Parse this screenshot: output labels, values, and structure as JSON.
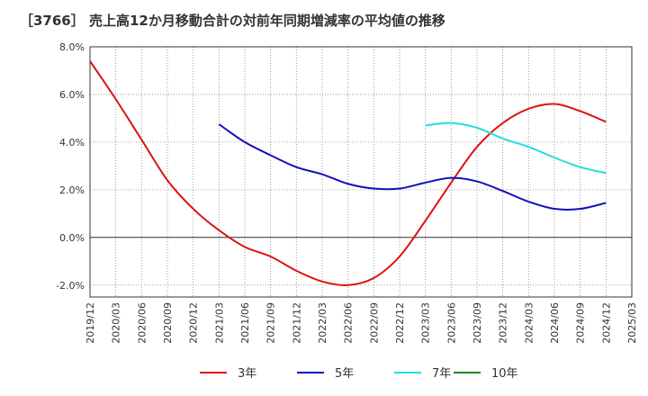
{
  "chart_data": {
    "type": "line",
    "title": "［3766］ 売上高12か月移動合計の対前年同期増減率の平均値の推移",
    "xlabel": "",
    "ylabel": "",
    "ylim": [
      -2.5,
      8.0
    ],
    "y_ticks": [
      "8.0%",
      "6.0%",
      "4.0%",
      "2.0%",
      "0.0%",
      "-2.0%"
    ],
    "y_tick_values": [
      8.0,
      6.0,
      4.0,
      2.0,
      0.0,
      -2.0
    ],
    "x_ticks": [
      "2019/12",
      "2020/03",
      "2020/06",
      "2020/09",
      "2020/12",
      "2021/03",
      "2021/06",
      "2021/09",
      "2021/12",
      "2022/03",
      "2022/06",
      "2022/09",
      "2022/12",
      "2023/03",
      "2023/06",
      "2023/09",
      "2023/12",
      "2024/03",
      "2024/06",
      "2024/09",
      "2024/12",
      "2025/03"
    ],
    "grid": true,
    "legend_position": "bottom",
    "series": [
      {
        "name": "3年",
        "color": "#dd1111",
        "x": [
          "2019/12",
          "2020/03",
          "2020/06",
          "2020/09",
          "2020/12",
          "2021/03",
          "2021/06",
          "2021/09",
          "2021/12",
          "2022/03",
          "2022/06",
          "2022/09",
          "2022/12",
          "2023/03",
          "2023/06",
          "2023/09",
          "2023/12",
          "2024/03",
          "2024/06",
          "2024/09",
          "2024/12"
        ],
        "values": [
          7.4,
          5.8,
          4.1,
          2.4,
          1.2,
          0.3,
          -0.4,
          -0.8,
          -1.4,
          -1.85,
          -2.0,
          -1.7,
          -0.8,
          0.7,
          2.3,
          3.8,
          4.8,
          5.4,
          5.6,
          5.3,
          4.85
        ]
      },
      {
        "name": "5年",
        "color": "#1111bb",
        "x": [
          "2021/03",
          "2021/06",
          "2021/09",
          "2021/12",
          "2022/03",
          "2022/06",
          "2022/09",
          "2022/12",
          "2023/03",
          "2023/06",
          "2023/09",
          "2023/12",
          "2024/03",
          "2024/06",
          "2024/09",
          "2024/12"
        ],
        "values": [
          4.75,
          4.0,
          3.45,
          2.95,
          2.65,
          2.25,
          2.05,
          2.05,
          2.3,
          2.5,
          2.35,
          1.95,
          1.5,
          1.2,
          1.2,
          1.45
        ]
      },
      {
        "name": "7年",
        "color": "#22dddd",
        "x": [
          "2023/03",
          "2023/06",
          "2023/09",
          "2023/12",
          "2024/03",
          "2024/06",
          "2024/09",
          "2024/12"
        ],
        "values": [
          4.7,
          4.8,
          4.6,
          4.15,
          3.8,
          3.35,
          2.95,
          2.7
        ]
      },
      {
        "name": "10年",
        "color": "#228822",
        "x": [],
        "values": []
      }
    ]
  }
}
